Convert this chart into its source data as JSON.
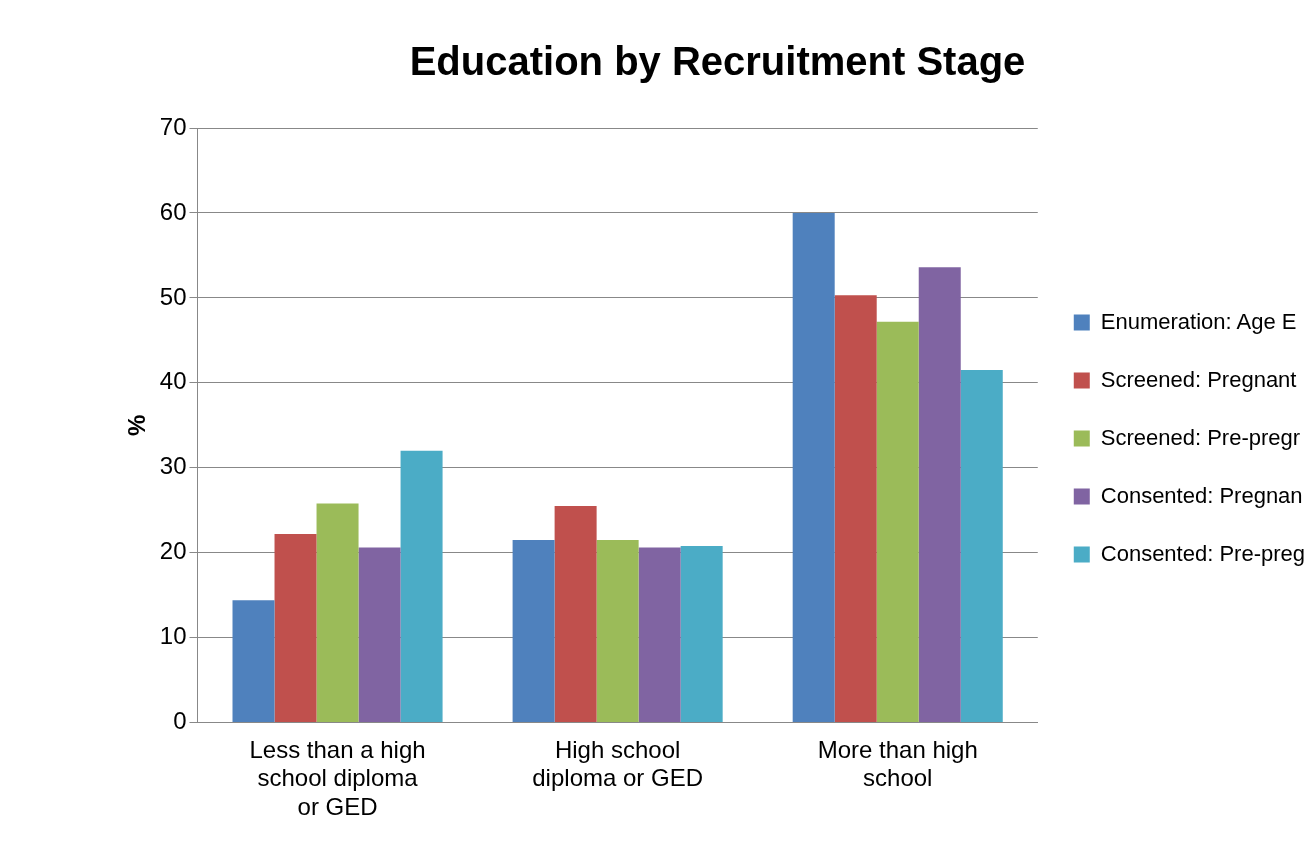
{
  "chart_data": {
    "type": "bar",
    "title": "Education by Recruitment Stage",
    "ylabel": "%",
    "categories": [
      "Less than a high school diploma or GED",
      "High school diploma or GED",
      "More than high school"
    ],
    "series": [
      {
        "name": "Enumeration: Age E",
        "color": "#4f81bd",
        "values": [
          14.4,
          21.5,
          60.0
        ]
      },
      {
        "name": "Screened: Pregnant",
        "color": "#c0504d",
        "values": [
          22.2,
          25.5,
          50.3
        ]
      },
      {
        "name": "Screened: Pre-pregr",
        "color": "#9bbb59",
        "values": [
          25.8,
          21.5,
          47.2
        ]
      },
      {
        "name": "Consented: Pregnan",
        "color": "#8064a2",
        "values": [
          20.6,
          20.6,
          53.6
        ]
      },
      {
        "name": "Consented: Pre-preg",
        "color": "#4bacc6",
        "values": [
          32.0,
          20.8,
          41.5
        ]
      }
    ],
    "ylim": [
      0,
      70
    ],
    "yticks": [
      0,
      10,
      20,
      30,
      40,
      50,
      60,
      70
    ],
    "grid": "y",
    "legend": "right"
  }
}
